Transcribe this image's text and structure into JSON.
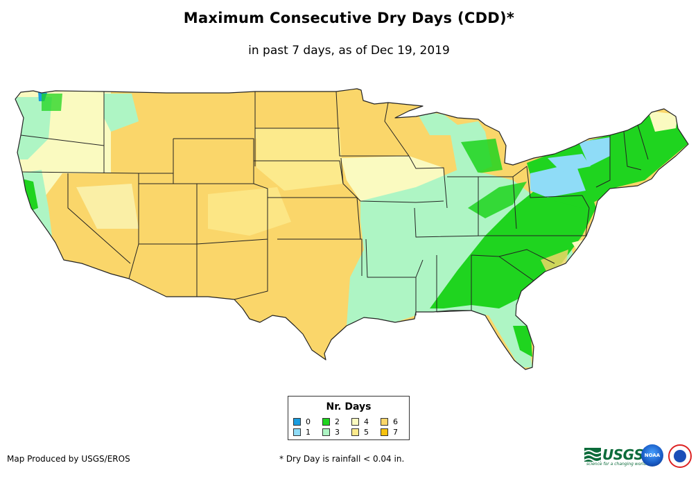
{
  "title": "Maximum Consecutive Dry Days (CDD)*",
  "subtitle": "in past 7 days, as of Dec 19, 2019",
  "legend": {
    "title": "Nr. Days",
    "items": [
      {
        "label": "0",
        "color": "#1a9de0"
      },
      {
        "label": "1",
        "color": "#8fdcf7"
      },
      {
        "label": "2",
        "color": "#1fd41f"
      },
      {
        "label": "3",
        "color": "#aef5c4"
      },
      {
        "label": "4",
        "color": "#fafac0"
      },
      {
        "label": "5",
        "color": "#fcea8c"
      },
      {
        "label": "6",
        "color": "#fad66a"
      },
      {
        "label": "7",
        "color": "#f7c20f"
      }
    ]
  },
  "credit": "Map Produced by USGS/EROS",
  "footnote": "* Dry Day is rainfall < 0.04 in.",
  "logos": {
    "usgs": "USGS",
    "usgs_tagline": "science for a changing world",
    "noaa": "NOAA"
  },
  "colors": {
    "border": "#222222",
    "usgs_green": "#0b6b3a"
  }
}
